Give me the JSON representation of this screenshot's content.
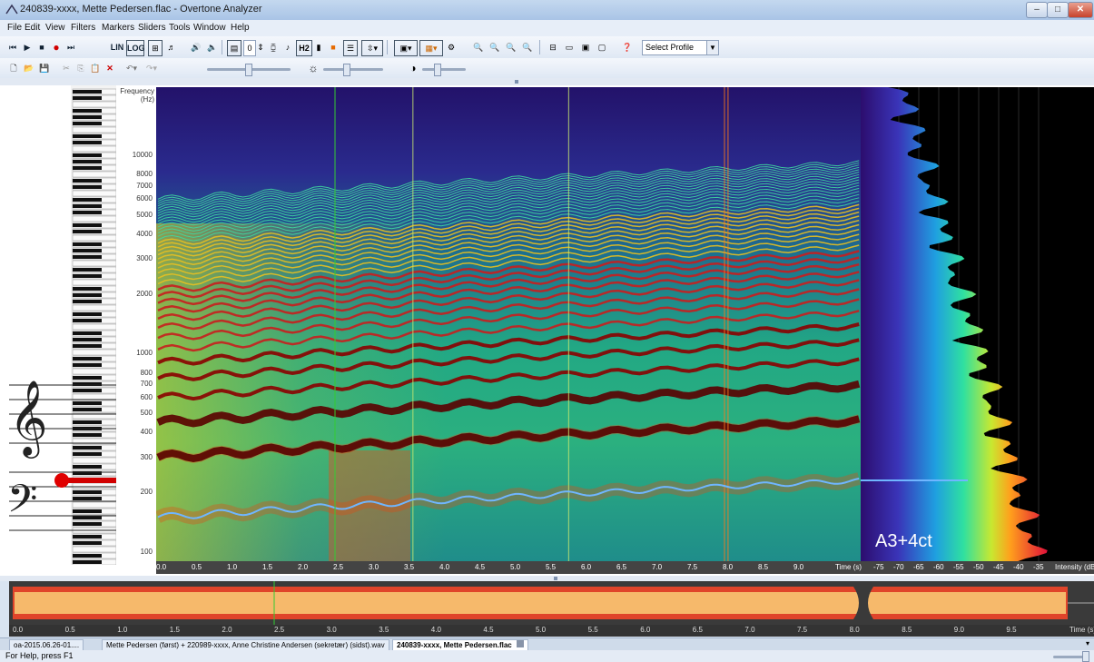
{
  "window": {
    "title": "240839-xxxx, Mette Pedersen.flac - Overtone Analyzer",
    "controls": [
      "–",
      "□",
      "✕"
    ]
  },
  "menu": [
    "File",
    "Edit",
    "View",
    "Filters",
    "Markers",
    "Sliders",
    "Tools",
    "Window",
    "Help"
  ],
  "toolbar": {
    "lin_label": "LIN",
    "log_label": "LOG",
    "harmonic_input": "0",
    "h2_label": "H2",
    "profile_select": "Select Profile"
  },
  "spectrogram": {
    "frequency_label_line1": "Frequency",
    "frequency_label_line2": "(Hz)",
    "y_ticks": [
      "10000",
      "8000",
      "7000",
      "6000",
      "5000",
      "4000",
      "3000",
      "2000",
      "1000",
      "800",
      "700",
      "600",
      "500",
      "400",
      "300",
      "200",
      "100"
    ],
    "y_tick_values": [
      10000,
      8000,
      7000,
      6000,
      5000,
      4000,
      3000,
      2000,
      1000,
      800,
      700,
      600,
      500,
      400,
      300,
      200,
      100
    ],
    "x_ticks": [
      "0.0",
      "0.5",
      "1.0",
      "1.5",
      "2.0",
      "2.5",
      "3.0",
      "3.5",
      "4.0",
      "4.5",
      "5.0",
      "5.5",
      "6.0",
      "6.5",
      "7.0",
      "7.5",
      "8.0",
      "8.5",
      "9.0"
    ],
    "x_tick_values": [
      0,
      0.5,
      1,
      1.5,
      2,
      2.5,
      3,
      3.5,
      4,
      4.5,
      5,
      5.5,
      6,
      6.5,
      7,
      7.5,
      8,
      8.5,
      9
    ],
    "time_axis_label": "Time (s)",
    "cursor_time": 2.5,
    "note_readout": "A3+4ct"
  },
  "intensity_axis": {
    "ticks": [
      "-75",
      "-70",
      "-65",
      "-60",
      "-55",
      "-50",
      "-45",
      "-40",
      "-35"
    ],
    "label": "Intensity (dB"
  },
  "overview": {
    "x_ticks": [
      "0.0",
      "0.5",
      "1.0",
      "1.5",
      "2.0",
      "2.5",
      "3.0",
      "3.5",
      "4.0",
      "4.5",
      "5.0",
      "5.5",
      "6.0",
      "6.5",
      "7.0",
      "7.5",
      "8.0",
      "8.5",
      "9.0",
      "9.5"
    ],
    "time_axis_label": "Time (s)"
  },
  "tabs": [
    "oa-2015.06.26-01....",
    "Mette Pedersen (først) + 220989-xxxx, Anne Christine Andersen (sekretær) (sidst).wav",
    "240839-xxxx, Mette Pedersen.flac"
  ],
  "status": "For Help, press F1",
  "colors": {
    "pitch_track": "#6fb6ff",
    "cursor": "#33cc33",
    "overview_wave": "#f6b96b",
    "overview_edge": "#e0442a"
  }
}
